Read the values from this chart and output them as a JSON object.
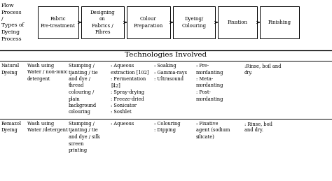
{
  "bg_color": "#ffffff",
  "flow_boxes": [
    "Fabric\nPre-treatment",
    "Designing\non\nFabrics /\nFibres",
    "Colour\nPreparation",
    "Dyeing/\nColouring",
    "Fixation",
    "Finishing"
  ],
  "flow_label": "Flow\nProcess\n/\nTypes of\nDyeing\nProcess",
  "tech_header": "Technologies Involved",
  "rows": [
    {
      "label": "Natural\nDyeing",
      "cols": [
        "Wash using\nWater / non-ionic\ndetergent",
        "Stamping /\ntjanting / tie\nand dye /\nthread\ncolouring /\nplain\nbackground\ncolouring",
        ": Aqueous\nextraction [102]\n: Fermentation\n[42]\n: Spray-drying\n: Freeze-dried\n: Sonicator\n: Soxhlet",
        ": Soaking\n: Gamma-rays\n: Ultrasound",
        ": Pre-\nmordanting\n: Meta-\nmordanting\n: Post-\nmordanting",
        ":Rinse, boil and\ndry."
      ]
    },
    {
      "label": "Remazol\nDyeing",
      "cols": [
        "Wash using\nWater /detergent",
        "Stamping /\ntjanting / tie\nand dye / silk\nscreen\nprinting",
        ": Aqueous",
        ": Colouring\n: Dipping",
        ": Fixative\nagent (sodium\nsilicate)",
        ": Rinse, boil\nand dry."
      ]
    }
  ]
}
